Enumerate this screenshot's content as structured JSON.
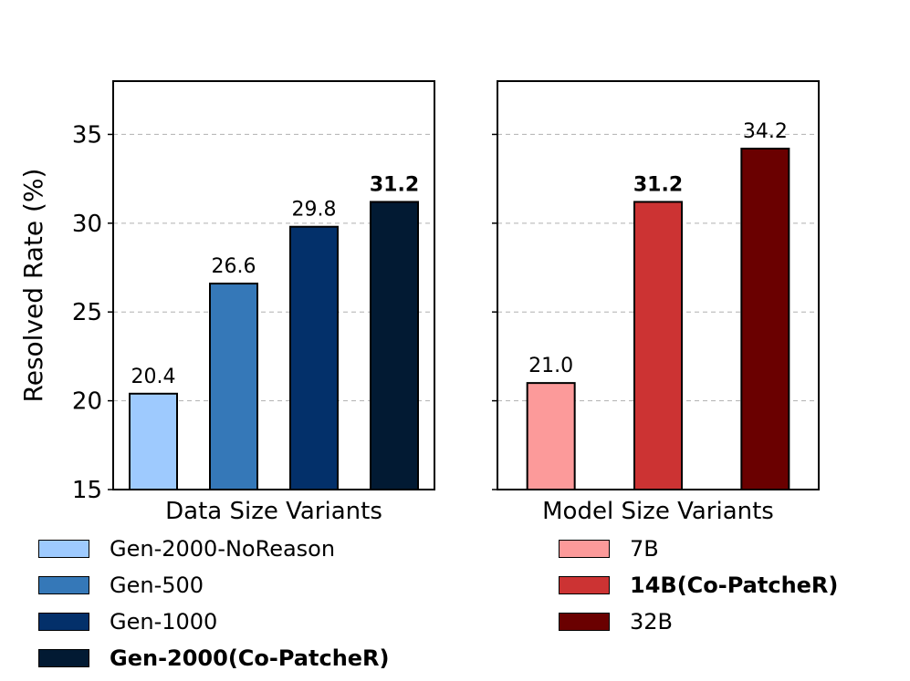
{
  "chart_data": [
    {
      "type": "bar",
      "panel": "left",
      "xlabel": "Data Size Variants",
      "ylabel": "Resolved Rate (%)",
      "ylim": [
        15,
        38
      ],
      "yticks": [
        15,
        20,
        25,
        30,
        35
      ],
      "grid": "horizontal dashed",
      "categories": [
        "Gen-2000-NoReason",
        "Gen-500",
        "Gen-1000",
        "Gen-2000(Co-PatcheR)"
      ],
      "values": [
        20.4,
        26.6,
        29.8,
        31.2
      ],
      "value_labels": [
        "20.4",
        "26.6",
        "29.8",
        "31.2"
      ],
      "colors": [
        "#9ECAFE",
        "#3578B8",
        "#03306A",
        "#021A33"
      ],
      "bold": [
        false,
        false,
        false,
        true
      ]
    },
    {
      "type": "bar",
      "panel": "right",
      "xlabel": "Model Size Variants",
      "ylim": [
        15,
        38
      ],
      "yticks": [
        15,
        20,
        25,
        30,
        35
      ],
      "grid": "horizontal dashed",
      "categories": [
        "7B",
        "14B(Co-PatcheR)",
        "32B"
      ],
      "values": [
        21.0,
        31.2,
        34.2
      ],
      "value_labels": [
        "21.0",
        "31.2",
        "34.2"
      ],
      "colors": [
        "#FC9A9A",
        "#CC3333",
        "#6A0000"
      ],
      "bold": [
        false,
        true,
        false
      ]
    }
  ]
}
